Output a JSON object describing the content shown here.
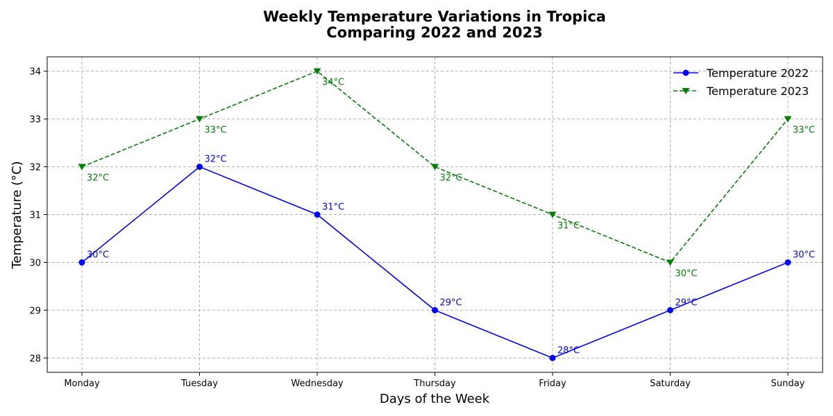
{
  "chart_data": {
    "type": "line",
    "title": "Weekly Temperature Variations in Tropica",
    "subtitle": "Comparing 2022 and 2023",
    "xlabel": "Days of the Week",
    "ylabel": "Temperature (°C)",
    "categories": [
      "Monday",
      "Tuesday",
      "Wednesday",
      "Thursday",
      "Friday",
      "Saturday",
      "Sunday"
    ],
    "ylim": [
      27.7,
      34.3
    ],
    "yticks": [
      28,
      29,
      30,
      31,
      32,
      33,
      34
    ],
    "grid": true,
    "legend_position": "top-right",
    "series": [
      {
        "name": "Temperature 2022",
        "values": [
          30,
          32,
          31,
          29,
          28,
          29,
          30
        ],
        "labels": [
          "30°C",
          "32°C",
          "31°C",
          "29°C",
          "28°C",
          "29°C",
          "30°C"
        ],
        "color": "#0000ff",
        "line_style": "solid",
        "marker": "circle"
      },
      {
        "name": "Temperature 2023",
        "values": [
          32,
          33,
          34,
          32,
          31,
          30,
          33
        ],
        "labels": [
          "32°C",
          "33°C",
          "34°C",
          "32°C",
          "31°C",
          "30°C",
          "33°C"
        ],
        "color": "#008000",
        "line_style": "dashed",
        "marker": "triangle-down"
      }
    ]
  }
}
